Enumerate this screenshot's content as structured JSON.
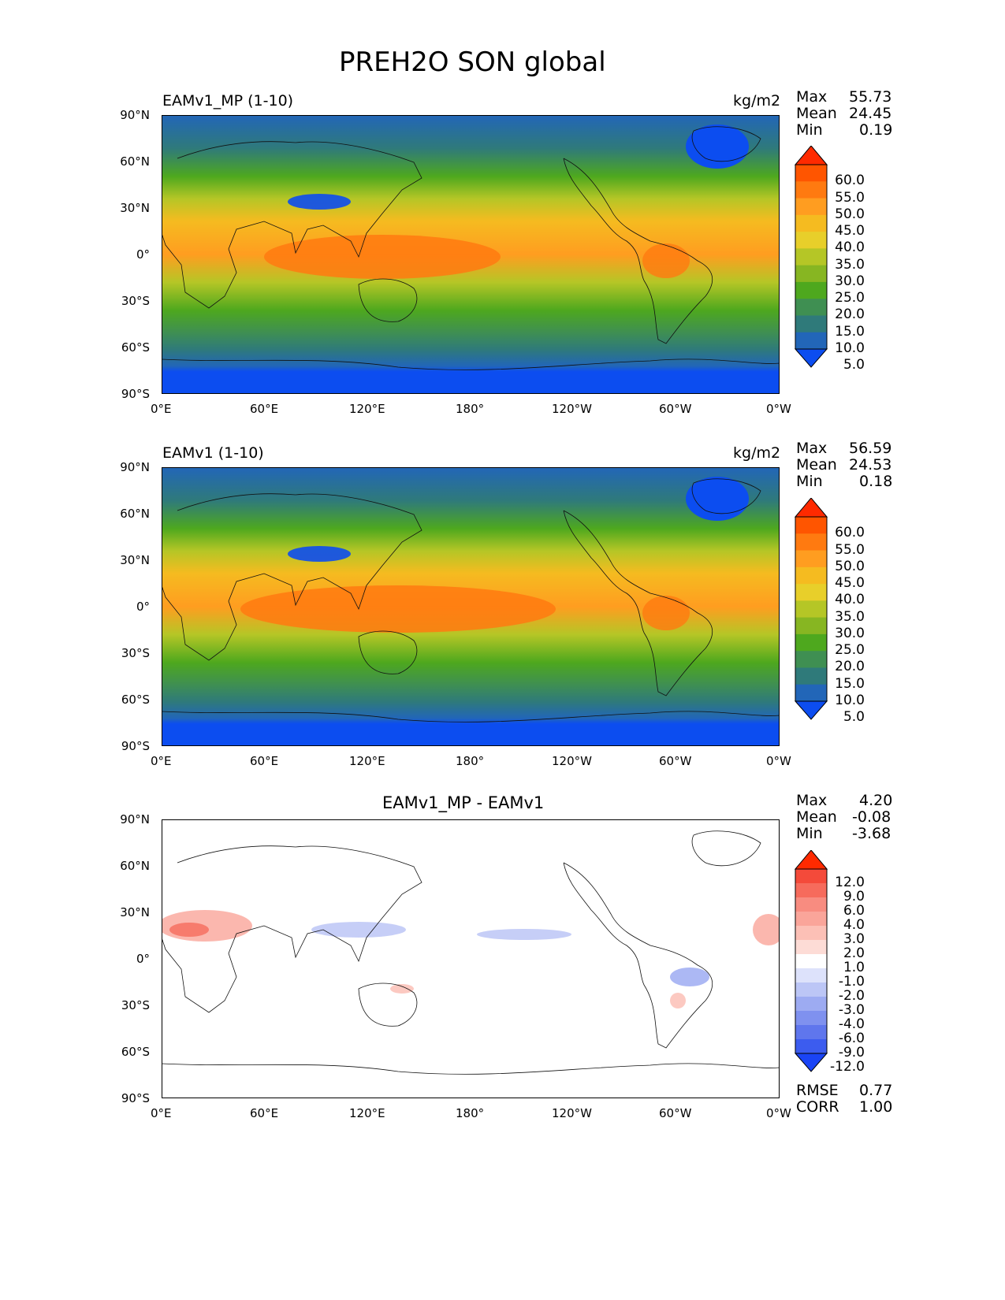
{
  "figure_title": "PREH2O SON global",
  "axes": {
    "lat_ticks": [
      "90°N",
      "60°N",
      "30°N",
      "0°",
      "30°S",
      "60°S",
      "90°S"
    ],
    "lon_ticks": [
      "0°E",
      "60°E",
      "120°E",
      "180°",
      "120°W",
      "60°W",
      "0°W"
    ]
  },
  "panels": [
    {
      "left_title": "EAMv1_MP (1-10)",
      "units": "kg/m2",
      "stats": {
        "max_label": "Max",
        "max": "55.73",
        "mean_label": "Mean",
        "mean": "24.45",
        "min_label": "Min",
        "min": "0.19"
      },
      "colorbar": {
        "labels": [
          "60.0",
          "55.0",
          "50.0",
          "45.0",
          "40.0",
          "35.0",
          "30.0",
          "25.0",
          "20.0",
          "15.0",
          "10.0",
          "5.0"
        ],
        "colors": [
          "#ff2a00",
          "#ff5500",
          "#ff7a10",
          "#ff9d20",
          "#f5bb20",
          "#e8cf2a",
          "#b5c626",
          "#87b622",
          "#4ea81e",
          "#3f8f52",
          "#2f7a7a",
          "#2266b8",
          "#0c4df0"
        ]
      }
    },
    {
      "left_title": "EAMv1 (1-10)",
      "units": "kg/m2",
      "stats": {
        "max_label": "Max",
        "max": "56.59",
        "mean_label": "Mean",
        "mean": "24.53",
        "min_label": "Min",
        "min": "0.18"
      },
      "colorbar": {
        "labels": [
          "60.0",
          "55.0",
          "50.0",
          "45.0",
          "40.0",
          "35.0",
          "30.0",
          "25.0",
          "20.0",
          "15.0",
          "10.0",
          "5.0"
        ],
        "colors": [
          "#ff2a00",
          "#ff5500",
          "#ff7a10",
          "#ff9d20",
          "#f5bb20",
          "#e8cf2a",
          "#b5c626",
          "#87b622",
          "#4ea81e",
          "#3f8f52",
          "#2f7a7a",
          "#2266b8",
          "#0c4df0"
        ]
      }
    },
    {
      "center_title": "EAMv1_MP - EAMv1",
      "stats": {
        "max_label": "Max",
        "max": "4.20",
        "mean_label": "Mean",
        "mean": "-0.08",
        "min_label": "Min",
        "min": "-3.68"
      },
      "colorbar": {
        "labels": [
          "12.0",
          "9.0",
          "6.0",
          "4.0",
          "3.0",
          "2.0",
          "1.0",
          "-1.0",
          "-2.0",
          "-3.0",
          "-4.0",
          "-6.0",
          "-9.0",
          "-12.0"
        ],
        "colors": [
          "#ff2a00",
          "#f44a3a",
          "#f66b5c",
          "#f88c80",
          "#faa59a",
          "#fcc0b6",
          "#fddcd6",
          "#ffffff",
          "#dde2fb",
          "#bcc6f6",
          "#9dabf2",
          "#7f91ef",
          "#5f76ed",
          "#3c5cef",
          "#1a44f5"
        ]
      },
      "rmse_label": "RMSE",
      "rmse": "0.77",
      "corr_label": "CORR",
      "corr": "1.00"
    }
  ]
}
